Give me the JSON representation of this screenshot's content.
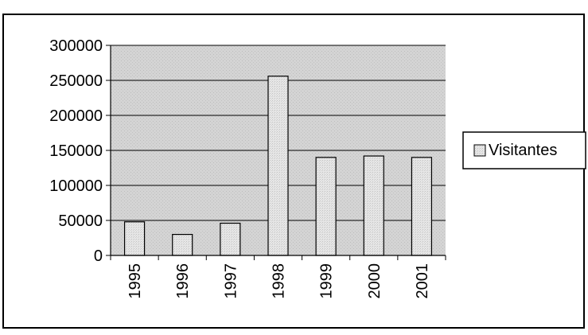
{
  "chart_data": {
    "type": "bar",
    "title": "",
    "xlabel": "",
    "ylabel": "",
    "categories": [
      "1995",
      "1996",
      "1997",
      "1998",
      "1999",
      "2000",
      "2001"
    ],
    "series": [
      {
        "name": "Visitantes",
        "values": [
          48000,
          30000,
          46000,
          256000,
          140000,
          142000,
          140000
        ]
      }
    ],
    "ylim": [
      0,
      300000
    ],
    "yticks": [
      "0",
      "50000",
      "100000",
      "150000",
      "200000",
      "250000",
      "300000"
    ],
    "grid": true,
    "legend_position": "right",
    "colors": {
      "bar_fill": "#e0e0e0",
      "bar_stroke": "#000000",
      "plot_background": "#d6d6d6",
      "gridline": "#000000",
      "border": "#000000"
    }
  }
}
